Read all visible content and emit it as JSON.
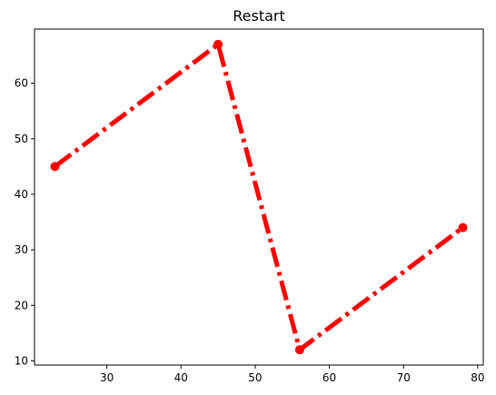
{
  "chart_data": {
    "type": "line",
    "title": "Restart",
    "xlabel": "",
    "ylabel": "",
    "x": [
      23,
      45,
      56,
      78
    ],
    "series": [
      {
        "values": [
          45,
          67,
          12,
          34
        ],
        "color": "#ff0000",
        "line_style": "dash-dot",
        "marker": "circle"
      }
    ],
    "xlim": [
      20.25,
      80.75
    ],
    "ylim": [
      9.25,
      69.75
    ],
    "xticks": [
      30,
      40,
      50,
      60,
      70,
      80
    ],
    "yticks": [
      10,
      20,
      30,
      40,
      50,
      60
    ],
    "grid": false
  }
}
